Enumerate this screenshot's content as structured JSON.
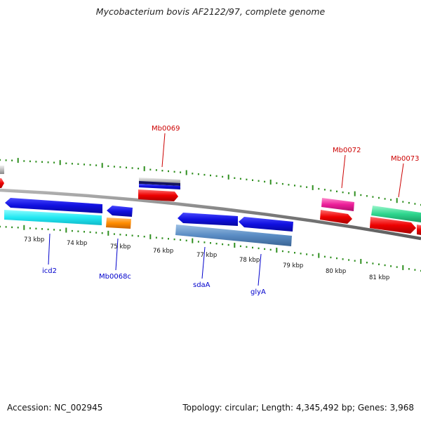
{
  "title": "Mycobacterium bovis AF2122/97, complete genome",
  "footer": {
    "accession": "Accession: NC_002945",
    "summary": "Topology: circular; Length: 4,345,492 bp; Genes: 3,968"
  },
  "colors": {
    "backbone": "#8c8c8c",
    "tick": "#2f8f1f",
    "label_forward": "#cc0000",
    "label_reverse": "#0000cc"
  },
  "ticks": [
    "73 kbp",
    "74 kbp",
    "75 kbp",
    "76 kbp",
    "77 kbp",
    "78 kbp",
    "79 kbp",
    "80 kbp",
    "81 kbp"
  ],
  "genes_forward": [
    {
      "label": "Mb0069",
      "color": "#e60000"
    },
    {
      "label": "Mb0072",
      "color": "#e8199a"
    },
    {
      "label": "Mb0073",
      "color": "#2ecc8a"
    }
  ],
  "genes_reverse": [
    {
      "label": "icd2",
      "color": "#1a1aee"
    },
    {
      "label": "Mb0068c",
      "color": "#1a1aee"
    },
    {
      "label": "sdaA",
      "color": "#1a1aee"
    },
    {
      "label": "glyA",
      "color": "#1a1aee"
    }
  ]
}
